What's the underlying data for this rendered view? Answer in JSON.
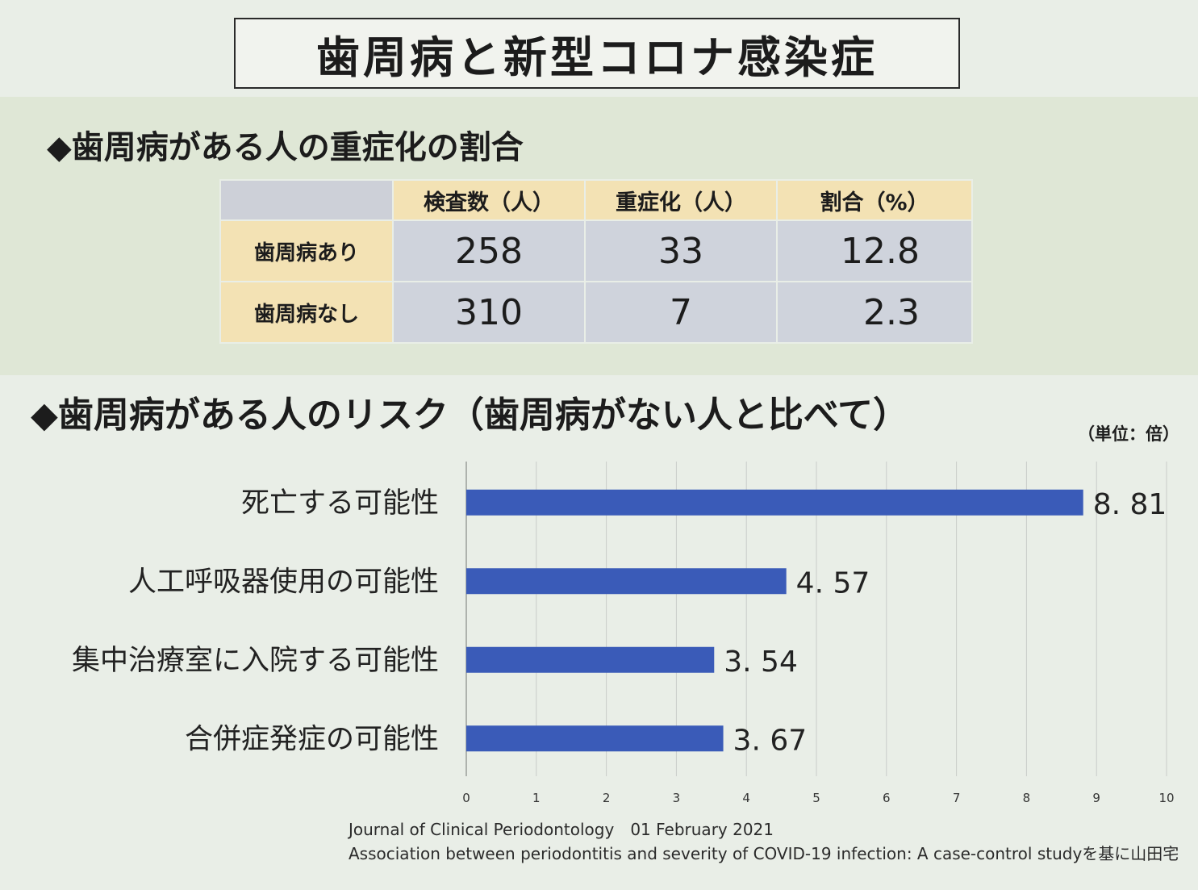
{
  "page_title": "歯周病と新型コロナ感染症",
  "section1": {
    "heading": "◆歯周病がある人の重症化の割合",
    "table": {
      "headers": [
        "",
        "検査数（人）",
        "重症化（人）",
        "割合（%）"
      ],
      "rows": [
        {
          "label": "歯周病あり",
          "tested": "258",
          "severe": "33",
          "rate": "12.8"
        },
        {
          "label": "歯周病なし",
          "tested": "310",
          "severe": "7",
          "rate": "2.3"
        }
      ]
    }
  },
  "section2": {
    "heading": "◆歯周病がある人のリスク（歯周病がない人と比べて）",
    "unit_note": "（単位：倍）"
  },
  "chart_data": {
    "type": "bar",
    "orientation": "horizontal",
    "categories": [
      "死亡する可能性",
      "人工呼吸器使用の可能性",
      "集中治療室に入院する可能性",
      "合併症発症の可能性"
    ],
    "values": [
      8.81,
      4.57,
      3.54,
      3.67
    ],
    "value_labels": [
      "8. 81",
      "4. 57",
      "3. 54",
      "3. 67"
    ],
    "xlim": [
      0,
      10
    ],
    "xticks": [
      "0",
      "1",
      "2",
      "3",
      "4",
      "5",
      "6",
      "7",
      "8",
      "9",
      "10"
    ],
    "grid": true,
    "bar_color": "#3a5bb8"
  },
  "source": {
    "line1": "Journal of Clinical Periodontology　01 February 2021",
    "line2": "Association between periodontitis and severity of COVID-19 infection: A case-control studyを基に山田宅"
  }
}
